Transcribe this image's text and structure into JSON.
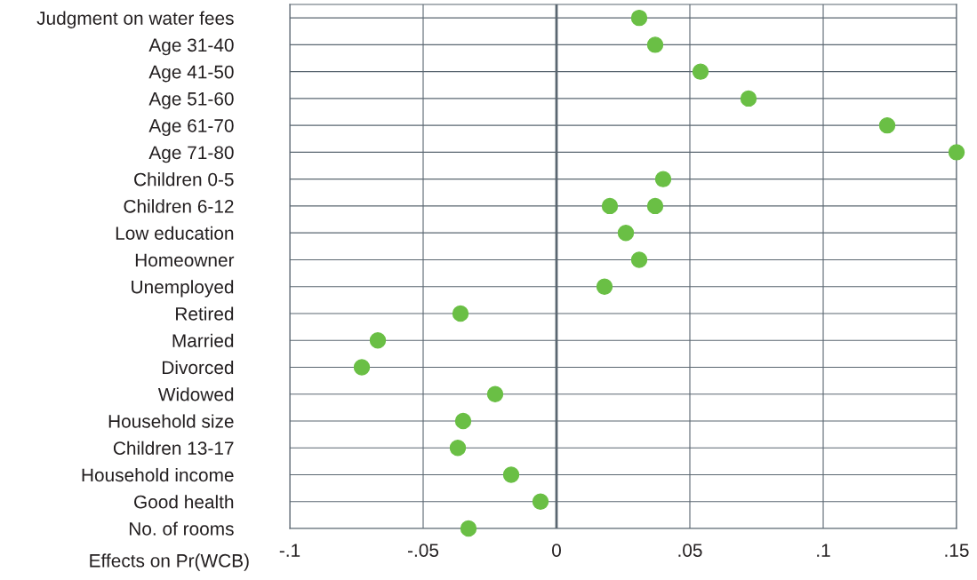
{
  "chart_data": {
    "type": "scatter",
    "orientation": "horizontal",
    "categories": [
      "Judgment on water fees",
      "Age 31-40",
      "Age 41-50",
      "Age 51-60",
      "Age 61-70",
      "Age 71-80",
      "Children 0-5",
      "Children 6-12",
      "Low education",
      "Homeowner",
      "Unemployed",
      "Retired",
      "Married",
      "Divorced",
      "Widowed",
      "Household size",
      "Children 13-17",
      "Household income",
      "Good health",
      "No. of rooms"
    ],
    "series": [
      {
        "color": "#6abf45",
        "values": [
          0.031,
          0.037,
          0.054,
          0.072,
          0.124,
          0.15,
          0.04,
          0.02,
          0.026,
          0.031,
          0.018,
          -0.036,
          -0.067,
          -0.073,
          -0.023,
          -0.035,
          -0.037,
          -0.017,
          -0.006,
          -0.033
        ]
      },
      {
        "color": "#6abf45",
        "values": [
          null,
          null,
          null,
          null,
          null,
          null,
          null,
          0.037,
          null,
          null,
          null,
          null,
          null,
          null,
          null,
          null,
          null,
          null,
          null,
          null
        ]
      }
    ],
    "xlabel": "Effects on Pr(WCB)",
    "xlim": [
      -0.1,
      0.15
    ],
    "xticks": [
      {
        "value": -0.1,
        "label": "-.1"
      },
      {
        "value": -0.05,
        "label": "-.05"
      },
      0,
      {
        "value": 0.05,
        "label": ".05"
      },
      {
        "value": 0.1,
        "label": ".1"
      },
      {
        "value": 0.15,
        "label": ".15"
      }
    ],
    "grid": true,
    "marker": "circle",
    "ref_lines": [
      {
        "axis": "x",
        "value": 0,
        "color": "#5a6670"
      }
    ]
  }
}
